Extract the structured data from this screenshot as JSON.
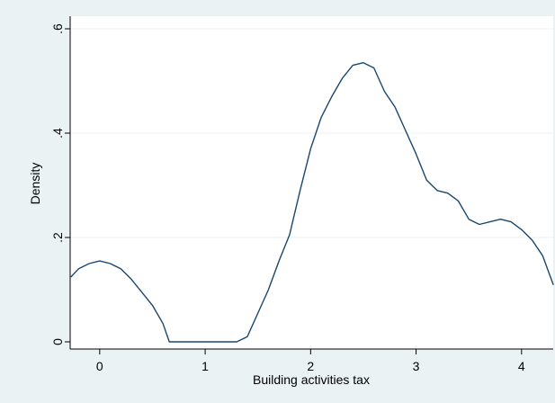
{
  "chart_data": {
    "type": "line",
    "title": "",
    "xlabel": "Building activities tax",
    "ylabel": "Density",
    "xlim": [
      -0.28,
      4.3
    ],
    "ylim": [
      0,
      0.6
    ],
    "x_ticks": [
      0,
      1,
      2,
      3,
      4
    ],
    "x_tick_labels": [
      "0",
      "1",
      "2",
      "3",
      "4"
    ],
    "y_ticks": [
      0,
      0.2,
      0.4,
      0.6
    ],
    "y_tick_labels": [
      "0",
      ".2",
      ".4",
      ".6"
    ],
    "grid": "horizontal",
    "series": [
      {
        "color": "#1a476f",
        "x": [
          -0.27,
          -0.2,
          -0.1,
          0.0,
          0.1,
          0.2,
          0.3,
          0.4,
          0.5,
          0.6,
          0.66,
          0.8,
          1.0,
          1.2,
          1.3,
          1.4,
          1.5,
          1.6,
          1.7,
          1.8,
          1.9,
          2.0,
          2.1,
          2.2,
          2.3,
          2.4,
          2.5,
          2.6,
          2.7,
          2.8,
          2.9,
          3.0,
          3.1,
          3.2,
          3.3,
          3.4,
          3.5,
          3.6,
          3.7,
          3.8,
          3.9,
          4.0,
          4.1,
          4.2,
          4.3
        ],
        "y": [
          0.125,
          0.14,
          0.15,
          0.155,
          0.15,
          0.14,
          0.12,
          0.095,
          0.07,
          0.035,
          0.0,
          0.0,
          0.0,
          0.0,
          0.0,
          0.01,
          0.055,
          0.1,
          0.155,
          0.205,
          0.29,
          0.37,
          0.43,
          0.47,
          0.505,
          0.53,
          0.535,
          0.525,
          0.48,
          0.45,
          0.405,
          0.36,
          0.31,
          0.29,
          0.285,
          0.27,
          0.235,
          0.225,
          0.23,
          0.235,
          0.23,
          0.215,
          0.195,
          0.165,
          0.11
        ]
      }
    ]
  }
}
